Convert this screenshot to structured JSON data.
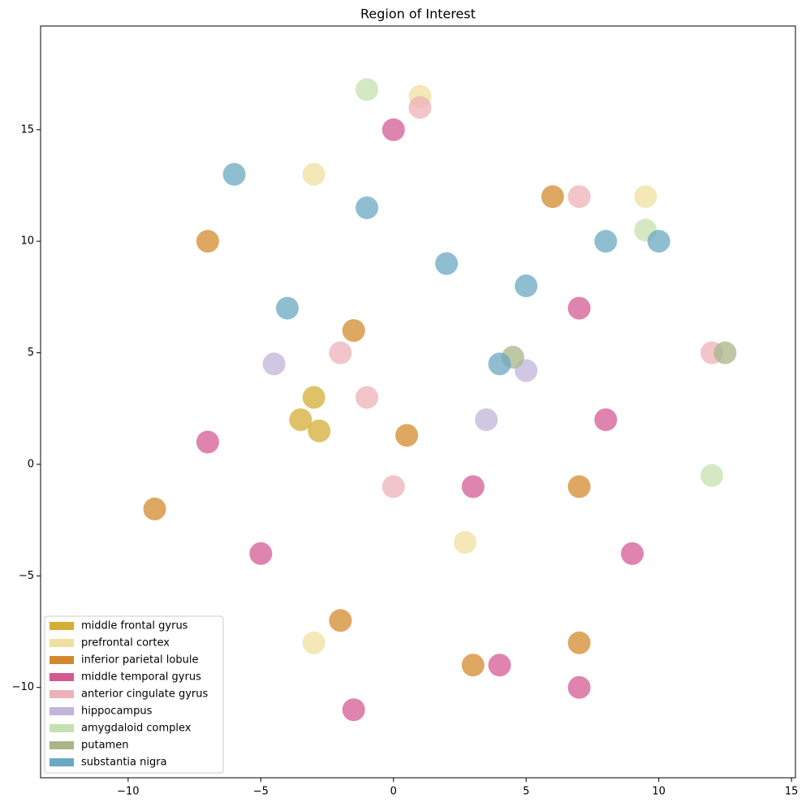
{
  "chart_data": {
    "type": "scatter",
    "title": "Region of Interest",
    "xlim": [
      -13.3,
      15.15
    ],
    "ylim": [
      -14.05,
      19.65
    ],
    "xticks": [
      {
        "value": -10,
        "label": "−10"
      },
      {
        "value": -5,
        "label": "−5"
      },
      0,
      5,
      10,
      15
    ],
    "yticks": [
      {
        "value": -10,
        "label": "−10"
      },
      {
        "value": -5,
        "label": "−5"
      },
      0,
      5,
      10,
      15
    ],
    "legend": "lower left",
    "series": [
      {
        "name": "middle frontal gyrus",
        "color": "#d4ad35",
        "x": [
          -3.5,
          -3,
          -2.8
        ],
        "y": [
          2,
          3,
          1.5
        ]
      },
      {
        "name": "prefrontal cortex",
        "color": "#f0dfa0",
        "x": [
          -3,
          9.5,
          -3,
          2.7,
          1
        ],
        "y": [
          13,
          12,
          -8,
          -3.5,
          16.5
        ]
      },
      {
        "name": "inferior parietal lobule",
        "color": "#d38a2e",
        "x": [
          -7,
          -1.5,
          0.5,
          -9,
          -2,
          7,
          3,
          7,
          6
        ],
        "y": [
          10,
          6,
          1.3,
          -2,
          -7,
          -1,
          -9,
          -8,
          12
        ]
      },
      {
        "name": "middle temporal gyrus",
        "color": "#d45a94",
        "x": [
          -5,
          -7,
          4,
          9,
          8,
          7,
          -1.5,
          7,
          3,
          0
        ],
        "y": [
          -4,
          1,
          -9,
          -4,
          2,
          7,
          -11,
          -10,
          -1,
          15
        ]
      },
      {
        "name": "anterior cingulate gyrus",
        "color": "#ecb2b8",
        "x": [
          0,
          -1,
          1,
          7,
          -2,
          12
        ],
        "y": [
          -1,
          3,
          16,
          12,
          5,
          5
        ]
      },
      {
        "name": "hippocampus",
        "color": "#c0b4d8",
        "x": [
          5,
          3.5,
          -4.5
        ],
        "y": [
          4.2,
          2,
          4.5
        ]
      },
      {
        "name": "amygdaloid complex",
        "color": "#c6e0b0",
        "x": [
          12,
          9.5,
          -1
        ],
        "y": [
          -0.5,
          10.5,
          16.8
        ]
      },
      {
        "name": "putamen",
        "color": "#a8b587",
        "x": [
          12.5,
          4.5
        ],
        "y": [
          5,
          4.8
        ]
      },
      {
        "name": "substantia nigra",
        "color": "#6aa8c2",
        "x": [
          -6,
          -4,
          2,
          4,
          8,
          -1,
          10,
          5
        ],
        "y": [
          13,
          7,
          9,
          4.5,
          10,
          11.5,
          10,
          8
        ]
      }
    ]
  }
}
